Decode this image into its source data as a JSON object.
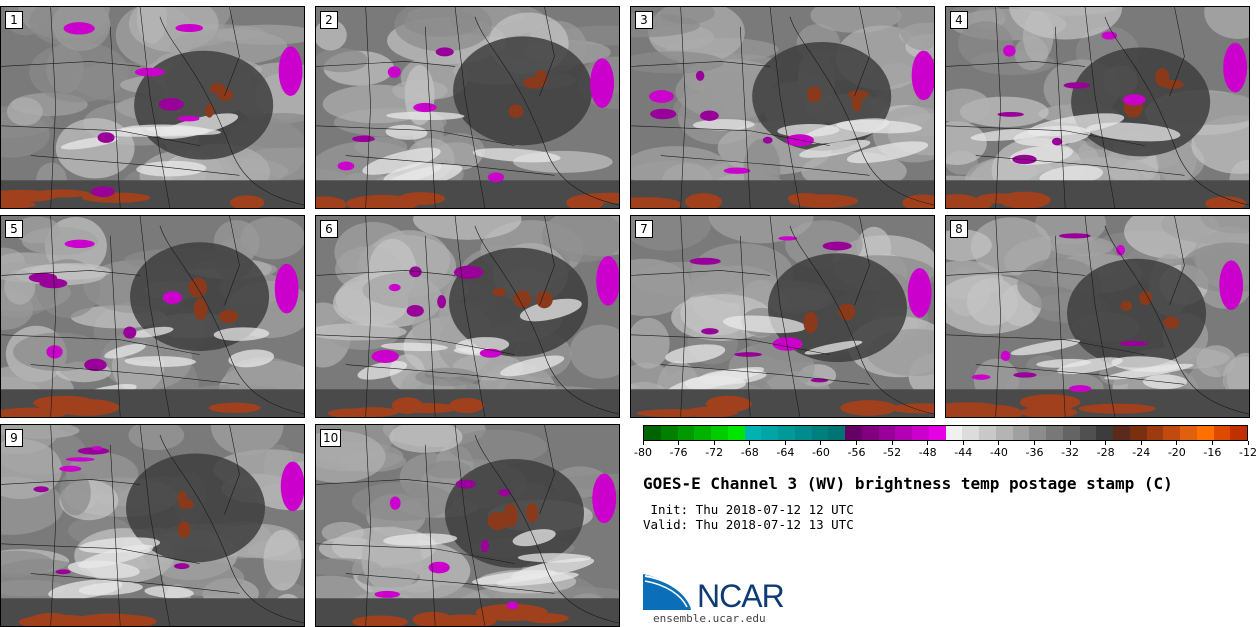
{
  "panels": [
    {
      "label": "1"
    },
    {
      "label": "2"
    },
    {
      "label": "3"
    },
    {
      "label": "4"
    },
    {
      "label": "5"
    },
    {
      "label": "6"
    },
    {
      "label": "7"
    },
    {
      "label": "8"
    },
    {
      "label": "9"
    },
    {
      "label": "10"
    }
  ],
  "colorbar": {
    "colors": [
      "#006400",
      "#007f00",
      "#009900",
      "#00b300",
      "#00cc00",
      "#00e600",
      "#00b3b3",
      "#00a6a6",
      "#009999",
      "#008c8c",
      "#007f7f",
      "#007373",
      "#660066",
      "#800080",
      "#990099",
      "#b300b3",
      "#cc00cc",
      "#e600e6",
      "#f0f0f0",
      "#dcdcdc",
      "#c8c8c8",
      "#b4b4b4",
      "#a0a0a0",
      "#8c8c8c",
      "#787878",
      "#646464",
      "#505050",
      "#3c3c3c",
      "#5a2a1a",
      "#7a3010",
      "#9c3a10",
      "#c04a10",
      "#e06010",
      "#ff7000",
      "#e04a00",
      "#c03000"
    ],
    "ticks": [
      "-80",
      "-76",
      "-72",
      "-68",
      "-64",
      "-60",
      "-56",
      "-52",
      "-48",
      "-44",
      "-40",
      "-36",
      "-32",
      "-28",
      "-24",
      "-20",
      "-16",
      "-12"
    ]
  },
  "title": "GOES-E Channel 3 (WV) brightness temp postage stamp (C)",
  "init": " Init: Thu 2018-07-12 12 UTC",
  "valid": "Valid: Thu 2018-07-12 13 UTC",
  "logo": {
    "name": "NCAR",
    "url": "ensemble.ucar.edu"
  }
}
